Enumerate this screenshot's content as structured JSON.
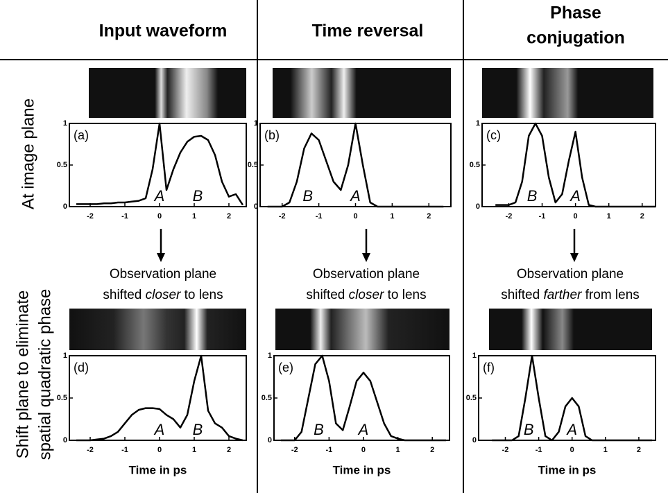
{
  "headers": [
    "Input waveform",
    "Time reversal",
    [
      "Phase",
      "conjugation"
    ]
  ],
  "row_labels": [
    "At image plane",
    [
      "Shift plane to eliminate",
      "spatial quadratic phase"
    ]
  ],
  "notes": [
    {
      "line1": "Observation plane",
      "line2": [
        "shifted ",
        "closer",
        " to lens"
      ]
    },
    {
      "line1": "Observation plane",
      "line2": [
        "shifted ",
        "closer",
        " to lens"
      ]
    },
    {
      "line1": "Observation plane",
      "line2": [
        "shifted ",
        "farther",
        " from lens"
      ]
    }
  ],
  "chart_data": [
    {
      "type": "line",
      "label": "(a)",
      "annotations": [
        "A",
        "B"
      ],
      "color": "#000",
      "x": [
        -2.4,
        -2.2,
        -2.0,
        -1.8,
        -1.6,
        -1.4,
        -1.2,
        -1.0,
        -0.8,
        -0.6,
        -0.4,
        -0.2,
        0,
        0.2,
        0.4,
        0.6,
        0.8,
        1.0,
        1.2,
        1.4,
        1.6,
        1.8,
        2.0,
        2.2,
        2.4
      ],
      "values": [
        0.03,
        0.03,
        0.03,
        0.03,
        0.04,
        0.04,
        0.05,
        0.05,
        0.06,
        0.07,
        0.1,
        0.45,
        1.0,
        0.2,
        0.45,
        0.65,
        0.78,
        0.84,
        0.85,
        0.8,
        0.62,
        0.3,
        0.12,
        0.15,
        0.02
      ],
      "xlim": [
        -2.6,
        2.5
      ],
      "ylim": [
        0,
        1
      ],
      "xticks": [
        -2,
        -1,
        0,
        1,
        2
      ],
      "yticks": [
        0,
        0.5,
        1
      ]
    },
    {
      "type": "line",
      "label": "(b)",
      "annotations": [
        "B",
        "A"
      ],
      "color": "#000",
      "x": [
        -2.4,
        -2.2,
        -2.0,
        -1.8,
        -1.6,
        -1.4,
        -1.2,
        -1.0,
        -0.8,
        -0.6,
        -0.4,
        -0.2,
        0,
        0.2,
        0.4,
        0.6,
        0.8,
        1.0,
        1.2,
        1.4,
        1.6,
        1.8,
        2.0,
        2.2,
        2.4
      ],
      "values": [
        0,
        0,
        0,
        0.05,
        0.3,
        0.7,
        0.88,
        0.8,
        0.55,
        0.3,
        0.2,
        0.5,
        1.0,
        0.5,
        0.05,
        0,
        0,
        0,
        0,
        0,
        0,
        0,
        0,
        0,
        0
      ],
      "xlim": [
        -2.6,
        2.6
      ],
      "ylim": [
        0,
        1
      ],
      "xticks": [
        -2,
        -1,
        0,
        1,
        2
      ],
      "yticks": [
        0,
        0.5,
        1
      ]
    },
    {
      "type": "line",
      "label": "(c)",
      "annotations": [
        "B",
        "A"
      ],
      "color": "#000",
      "x": [
        -2.4,
        -2.2,
        -2.0,
        -1.8,
        -1.6,
        -1.4,
        -1.2,
        -1.0,
        -0.8,
        -0.6,
        -0.4,
        -0.2,
        0,
        0.2,
        0.4,
        0.6,
        0.8,
        1.0,
        1.2,
        1.4,
        1.6,
        1.8,
        2.0,
        2.2,
        2.4
      ],
      "values": [
        0.02,
        0.02,
        0.02,
        0.05,
        0.3,
        0.85,
        1.0,
        0.85,
        0.35,
        0.05,
        0.15,
        0.55,
        0.9,
        0.35,
        0.02,
        0,
        0,
        0,
        0,
        0,
        0,
        0,
        0,
        0,
        0
      ],
      "xlim": [
        -2.8,
        2.4
      ],
      "ylim": [
        0,
        1
      ],
      "xticks": [
        -2,
        -1,
        0,
        1,
        2
      ],
      "yticks": [
        0,
        0.5,
        1
      ]
    },
    {
      "type": "line",
      "label": "(d)",
      "annotations": [
        "A",
        "B"
      ],
      "color": "#000",
      "xlabel": "Time in ps",
      "x": [
        -2.4,
        -2.2,
        -2.0,
        -1.8,
        -1.6,
        -1.4,
        -1.2,
        -1.0,
        -0.8,
        -0.6,
        -0.4,
        -0.2,
        0,
        0.2,
        0.4,
        0.6,
        0.8,
        1.0,
        1.2,
        1.4,
        1.6,
        1.8,
        2.0,
        2.2,
        2.4
      ],
      "values": [
        0,
        0,
        0,
        0.01,
        0.02,
        0.05,
        0.1,
        0.2,
        0.3,
        0.36,
        0.38,
        0.38,
        0.37,
        0.3,
        0.25,
        0.15,
        0.3,
        0.7,
        1.0,
        0.35,
        0.2,
        0.15,
        0.05,
        0.02,
        0
      ],
      "xlim": [
        -2.6,
        2.5
      ],
      "ylim": [
        0,
        1
      ],
      "xticks": [
        -2,
        -1,
        0,
        1,
        2
      ],
      "yticks": [
        0,
        0.5,
        1
      ]
    },
    {
      "type": "line",
      "label": "(e)",
      "annotations": [
        "B",
        "A"
      ],
      "color": "#000",
      "xlabel": "Time in ps",
      "x": [
        -2.4,
        -2.2,
        -2.0,
        -1.8,
        -1.6,
        -1.4,
        -1.2,
        -1.0,
        -0.8,
        -0.6,
        -0.4,
        -0.2,
        0,
        0.2,
        0.4,
        0.6,
        0.8,
        1.0,
        1.2,
        1.4,
        1.6,
        1.8,
        2.0,
        2.2,
        2.4
      ],
      "values": [
        0,
        0,
        0,
        0.1,
        0.5,
        0.9,
        1.0,
        0.7,
        0.2,
        0.12,
        0.4,
        0.7,
        0.8,
        0.7,
        0.45,
        0.2,
        0.05,
        0.02,
        0,
        0,
        0,
        0,
        0,
        0,
        0
      ],
      "xlim": [
        -2.6,
        2.5
      ],
      "ylim": [
        0,
        1
      ],
      "xticks": [
        -2,
        -1,
        0,
        1,
        2
      ],
      "yticks": [
        0,
        0.5,
        1
      ]
    },
    {
      "type": "line",
      "label": "(f)",
      "annotations": [
        "B",
        "A"
      ],
      "color": "#000",
      "xlabel": "Time in ps",
      "x": [
        -2.4,
        -2.2,
        -2.0,
        -1.8,
        -1.6,
        -1.4,
        -1.2,
        -1.0,
        -0.8,
        -0.6,
        -0.4,
        -0.2,
        0,
        0.2,
        0.4,
        0.6,
        0.8,
        1.0,
        1.2,
        1.4,
        1.6,
        1.8,
        2.0,
        2.2,
        2.4
      ],
      "values": [
        0,
        0,
        0,
        0,
        0.05,
        0.5,
        1.0,
        0.5,
        0.05,
        0,
        0.1,
        0.4,
        0.5,
        0.4,
        0.05,
        0,
        0,
        0,
        0,
        0,
        0,
        0,
        0,
        0,
        0
      ],
      "xlim": [
        -2.8,
        2.5
      ],
      "ylim": [
        0,
        1
      ],
      "xticks": [
        -2,
        -1,
        0,
        1,
        2
      ],
      "yticks": [
        0,
        0.5,
        1
      ]
    }
  ]
}
